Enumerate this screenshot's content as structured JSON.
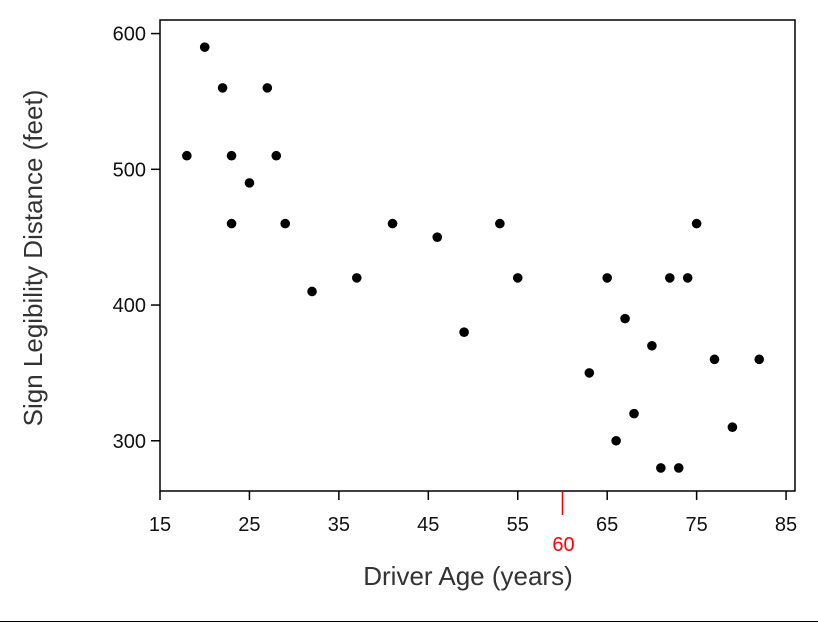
{
  "chart_data": {
    "type": "scatter",
    "title": "",
    "xlabel": "Driver Age (years)",
    "ylabel": "Sign Legibility Distance (feet)",
    "xlim": [
      15,
      86
    ],
    "ylim": [
      263,
      610
    ],
    "xticks": [
      15,
      25,
      35,
      45,
      55,
      65,
      75,
      85
    ],
    "yticks": [
      300,
      400,
      500,
      600
    ],
    "highlight_tick": {
      "value": 60,
      "label": "60",
      "color": "#ff0000"
    },
    "point_color": "#000000",
    "grid": false,
    "legend": "none",
    "points": [
      {
        "x": 18,
        "y": 510
      },
      {
        "x": 20,
        "y": 590
      },
      {
        "x": 22,
        "y": 560
      },
      {
        "x": 23,
        "y": 510
      },
      {
        "x": 23,
        "y": 460
      },
      {
        "x": 25,
        "y": 490
      },
      {
        "x": 27,
        "y": 560
      },
      {
        "x": 28,
        "y": 510
      },
      {
        "x": 29,
        "y": 460
      },
      {
        "x": 32,
        "y": 410
      },
      {
        "x": 37,
        "y": 420
      },
      {
        "x": 41,
        "y": 460
      },
      {
        "x": 46,
        "y": 450
      },
      {
        "x": 49,
        "y": 380
      },
      {
        "x": 53,
        "y": 460
      },
      {
        "x": 55,
        "y": 420
      },
      {
        "x": 63,
        "y": 350
      },
      {
        "x": 65,
        "y": 420
      },
      {
        "x": 66,
        "y": 300
      },
      {
        "x": 67,
        "y": 390
      },
      {
        "x": 68,
        "y": 320
      },
      {
        "x": 70,
        "y": 370
      },
      {
        "x": 71,
        "y": 280
      },
      {
        "x": 72,
        "y": 420
      },
      {
        "x": 73,
        "y": 280
      },
      {
        "x": 74,
        "y": 420
      },
      {
        "x": 75,
        "y": 460
      },
      {
        "x": 77,
        "y": 360
      },
      {
        "x": 79,
        "y": 310
      },
      {
        "x": 82,
        "y": 360
      }
    ]
  }
}
